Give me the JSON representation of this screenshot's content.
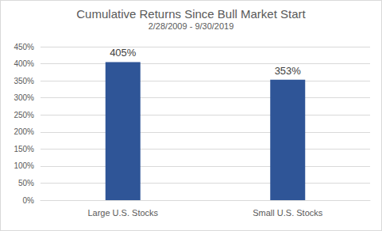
{
  "chart_data": {
    "type": "bar",
    "title": "Cumulative Returns Since Bull Market Start",
    "subtitle": "2/28/2009 - 9/30/2019",
    "categories": [
      "Large U.S. Stocks",
      "Small U.S. Stocks"
    ],
    "values": [
      405,
      353
    ],
    "value_labels": [
      "405%",
      "353%"
    ],
    "data_labels": true,
    "color": "#2f5597",
    "ylim": [
      0,
      450
    ],
    "yticks": [
      {
        "value": 0,
        "label": "0%"
      },
      {
        "value": 50,
        "label": "50%"
      },
      {
        "value": 100,
        "label": "100%"
      },
      {
        "value": 150,
        "label": "150%"
      },
      {
        "value": 200,
        "label": "200%"
      },
      {
        "value": 250,
        "label": "250%"
      },
      {
        "value": 300,
        "label": "300%"
      },
      {
        "value": 350,
        "label": "350%"
      },
      {
        "value": 400,
        "label": "400%"
      },
      {
        "value": 450,
        "label": "450%"
      }
    ],
    "grid": true
  }
}
